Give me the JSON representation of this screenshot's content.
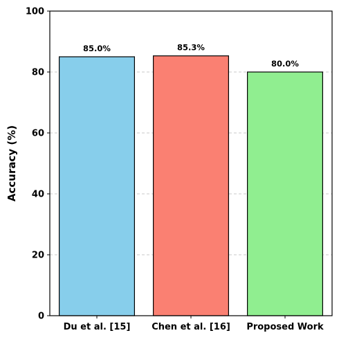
{
  "chart_data": {
    "type": "bar",
    "title": "",
    "xlabel": "",
    "ylabel": "Accuracy (%)",
    "ylim": [
      0,
      100
    ],
    "yticks": [
      0,
      20,
      40,
      60,
      80,
      100
    ],
    "grid": {
      "axis": "y",
      "style": "dashed",
      "enabled": true
    },
    "categories": [
      "Du et al. [15]",
      "Chen et al. [16]",
      "Proposed Work"
    ],
    "values": [
      85.0,
      85.3,
      80.0
    ],
    "data_labels": [
      "85.0%",
      "85.3%",
      "80.0%"
    ],
    "colors": [
      "#87CEEB",
      "#FA8072",
      "#90EE90"
    ],
    "edge_color": "#000000"
  }
}
